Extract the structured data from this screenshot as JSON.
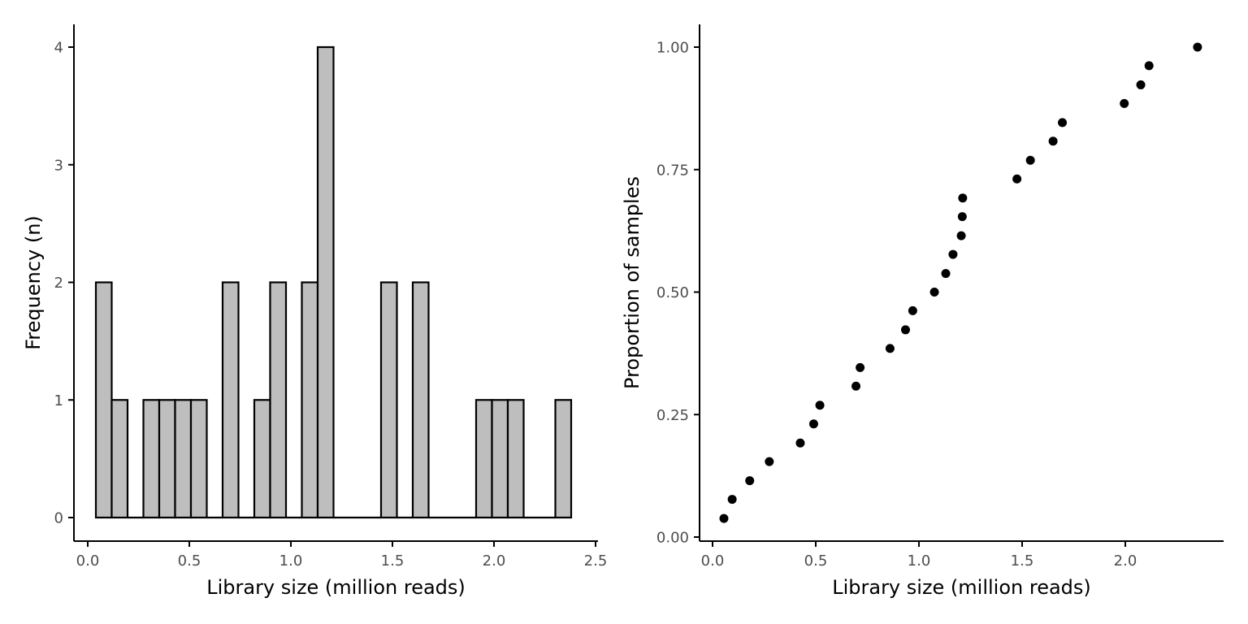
{
  "chart_data": [
    {
      "type": "bar",
      "subtype": "histogram",
      "xlabel": "Library size (million reads)",
      "ylabel": "Frequency (n)",
      "xlim": [
        0,
        2.5
      ],
      "ylim": [
        0,
        4
      ],
      "x_ticks": [
        "0.0",
        "0.5",
        "1.0",
        "1.5",
        "2.0",
        "2.5"
      ],
      "y_ticks": [
        "0",
        "1",
        "2",
        "3",
        "4"
      ],
      "bins": [
        {
          "x0": 0.04,
          "x1": 0.118,
          "count": 2
        },
        {
          "x0": 0.118,
          "x1": 0.196,
          "count": 1
        },
        {
          "x0": 0.196,
          "x1": 0.274,
          "count": 0
        },
        {
          "x0": 0.274,
          "x1": 0.352,
          "count": 1
        },
        {
          "x0": 0.352,
          "x1": 0.43,
          "count": 1
        },
        {
          "x0": 0.43,
          "x1": 0.508,
          "count": 1
        },
        {
          "x0": 0.508,
          "x1": 0.586,
          "count": 1
        },
        {
          "x0": 0.586,
          "x1": 0.664,
          "count": 0
        },
        {
          "x0": 0.664,
          "x1": 0.742,
          "count": 2
        },
        {
          "x0": 0.742,
          "x1": 0.82,
          "count": 0
        },
        {
          "x0": 0.82,
          "x1": 0.898,
          "count": 1
        },
        {
          "x0": 0.898,
          "x1": 0.976,
          "count": 2
        },
        {
          "x0": 0.976,
          "x1": 1.054,
          "count": 0
        },
        {
          "x0": 1.054,
          "x1": 1.132,
          "count": 2
        },
        {
          "x0": 1.132,
          "x1": 1.21,
          "count": 4
        },
        {
          "x0": 1.21,
          "x1": 1.288,
          "count": 0
        },
        {
          "x0": 1.288,
          "x1": 1.366,
          "count": 0
        },
        {
          "x0": 1.366,
          "x1": 1.444,
          "count": 0
        },
        {
          "x0": 1.444,
          "x1": 1.522,
          "count": 2
        },
        {
          "x0": 1.522,
          "x1": 1.6,
          "count": 0
        },
        {
          "x0": 1.6,
          "x1": 1.678,
          "count": 2
        },
        {
          "x0": 1.678,
          "x1": 1.756,
          "count": 0
        },
        {
          "x0": 1.756,
          "x1": 1.834,
          "count": 0
        },
        {
          "x0": 1.834,
          "x1": 1.912,
          "count": 0
        },
        {
          "x0": 1.912,
          "x1": 1.99,
          "count": 1
        },
        {
          "x0": 1.99,
          "x1": 2.068,
          "count": 1
        },
        {
          "x0": 2.068,
          "x1": 2.146,
          "count": 1
        },
        {
          "x0": 2.146,
          "x1": 2.224,
          "count": 0
        },
        {
          "x0": 2.224,
          "x1": 2.302,
          "count": 0
        },
        {
          "x0": 2.302,
          "x1": 2.38,
          "count": 1
        }
      ],
      "fill_color": "#bebebe",
      "stroke_color": "#000000",
      "grid": false
    },
    {
      "type": "scatter",
      "xlabel": "Library size (million reads)",
      "ylabel": "Proportion of samples",
      "xlim": [
        0,
        2.4
      ],
      "ylim": [
        0,
        1
      ],
      "x_ticks": [
        "0.0",
        "0.5",
        "1.0",
        "1.5",
        "2.0"
      ],
      "y_ticks": [
        "0.00",
        "0.25",
        "0.50",
        "0.75",
        "1.00"
      ],
      "points": [
        {
          "x": 0.055,
          "y": 0.038
        },
        {
          "x": 0.095,
          "y": 0.077
        },
        {
          "x": 0.18,
          "y": 0.115
        },
        {
          "x": 0.275,
          "y": 0.154
        },
        {
          "x": 0.425,
          "y": 0.192
        },
        {
          "x": 0.49,
          "y": 0.231
        },
        {
          "x": 0.52,
          "y": 0.269
        },
        {
          "x": 0.695,
          "y": 0.308
        },
        {
          "x": 0.715,
          "y": 0.346
        },
        {
          "x": 0.86,
          "y": 0.385
        },
        {
          "x": 0.935,
          "y": 0.423
        },
        {
          "x": 0.97,
          "y": 0.462
        },
        {
          "x": 1.075,
          "y": 0.5
        },
        {
          "x": 1.13,
          "y": 0.538
        },
        {
          "x": 1.165,
          "y": 0.577
        },
        {
          "x": 1.205,
          "y": 0.615
        },
        {
          "x": 1.21,
          "y": 0.654
        },
        {
          "x": 1.212,
          "y": 0.692
        },
        {
          "x": 1.475,
          "y": 0.731
        },
        {
          "x": 1.54,
          "y": 0.769
        },
        {
          "x": 1.65,
          "y": 0.808
        },
        {
          "x": 1.695,
          "y": 0.846
        },
        {
          "x": 1.995,
          "y": 0.885
        },
        {
          "x": 2.075,
          "y": 0.923
        },
        {
          "x": 2.115,
          "y": 0.962
        },
        {
          "x": 2.35,
          "y": 1.0
        }
      ],
      "point_color": "#000000",
      "grid": false
    }
  ]
}
